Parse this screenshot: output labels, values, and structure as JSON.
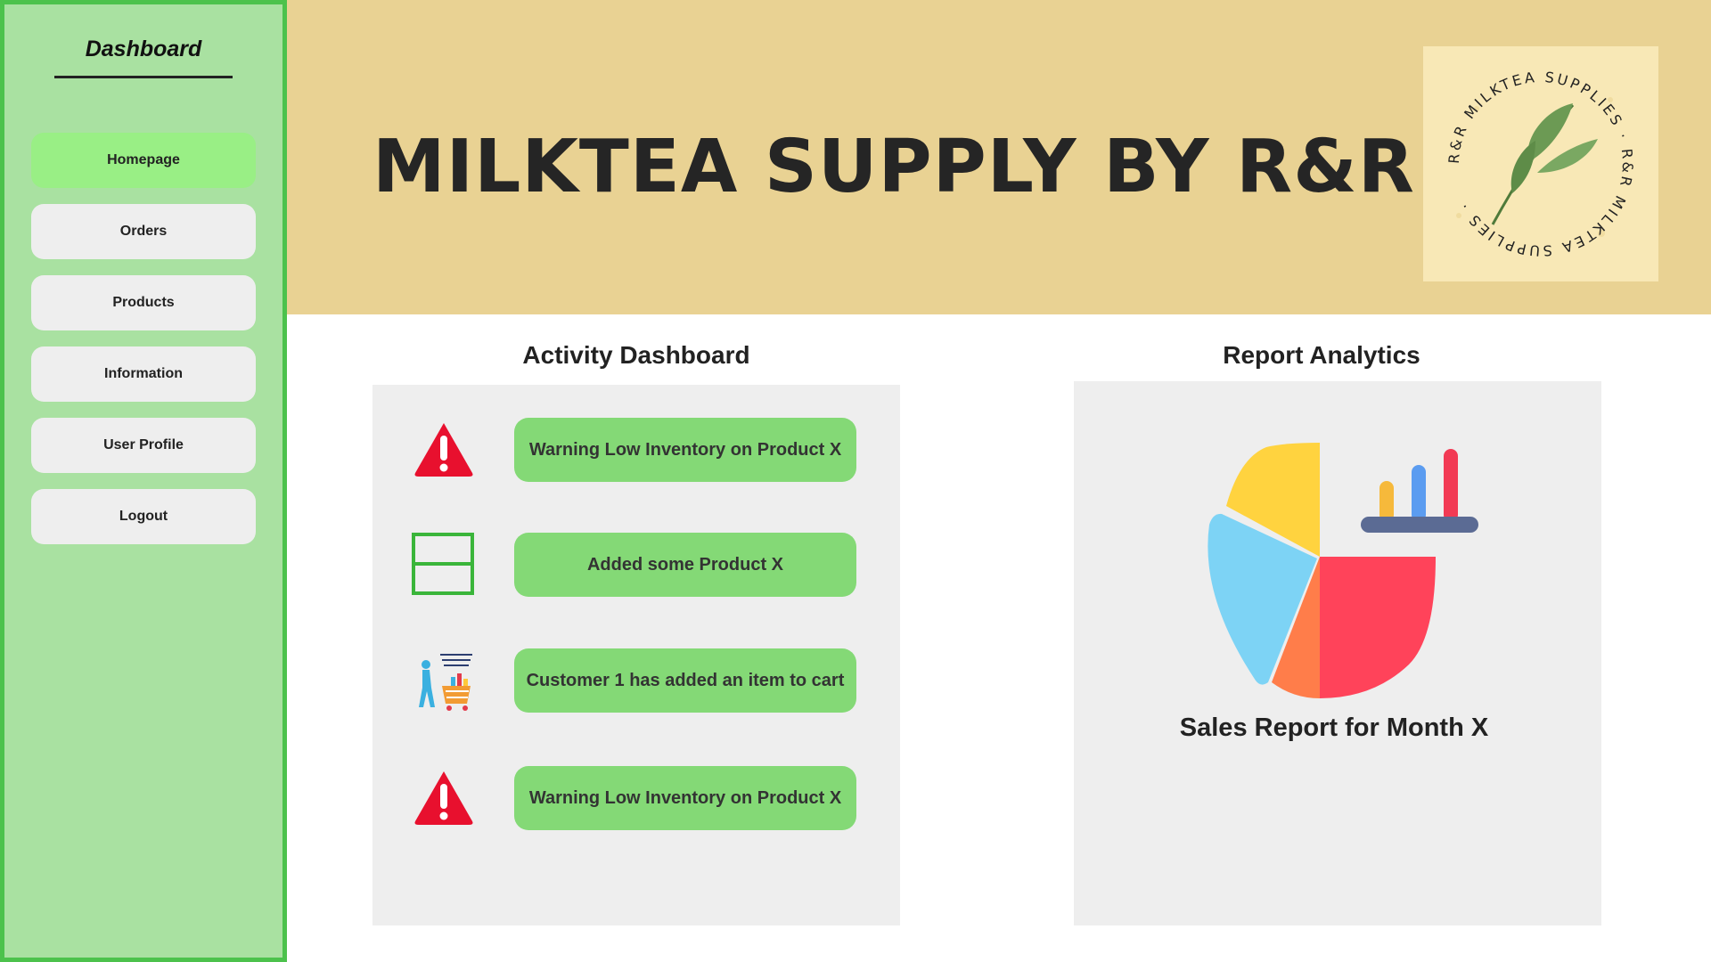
{
  "sidebar": {
    "title": "Dashboard",
    "items": [
      {
        "label": "Homepage",
        "active": true
      },
      {
        "label": "Orders",
        "active": false
      },
      {
        "label": "Products",
        "active": false
      },
      {
        "label": "Information",
        "active": false
      },
      {
        "label": "User Profile",
        "active": false
      },
      {
        "label": "Logout",
        "active": false
      }
    ]
  },
  "header": {
    "title": "MILKTEA SUPPLY BY R&R",
    "logo_text": "R&R MILKTEA SUPPLIES · R&R MILKTEA SUPPLIES ·"
  },
  "activity": {
    "title": "Activity Dashboard",
    "items": [
      {
        "icon": "warning-icon",
        "text": "Warning Low Inventory on Product X"
      },
      {
        "icon": "add-product-icon",
        "text": "Added some Product X"
      },
      {
        "icon": "shopping-cart-icon",
        "text": "Customer 1 has added an item to cart"
      },
      {
        "icon": "warning-icon",
        "text": "Warning Low Inventory on Product X"
      }
    ]
  },
  "report": {
    "title": "Report Analytics",
    "caption": "Sales Report for Month X",
    "icon": "pie-chart-icon"
  },
  "colors": {
    "sidebar_bg": "#a9e1a1",
    "sidebar_border": "#4cc24c",
    "nav_active": "#99ef85",
    "nav_default": "#eeeeee",
    "header_bg": "#e9d293",
    "activity_pill": "#84d976",
    "panel_bg": "#eeeeee"
  }
}
